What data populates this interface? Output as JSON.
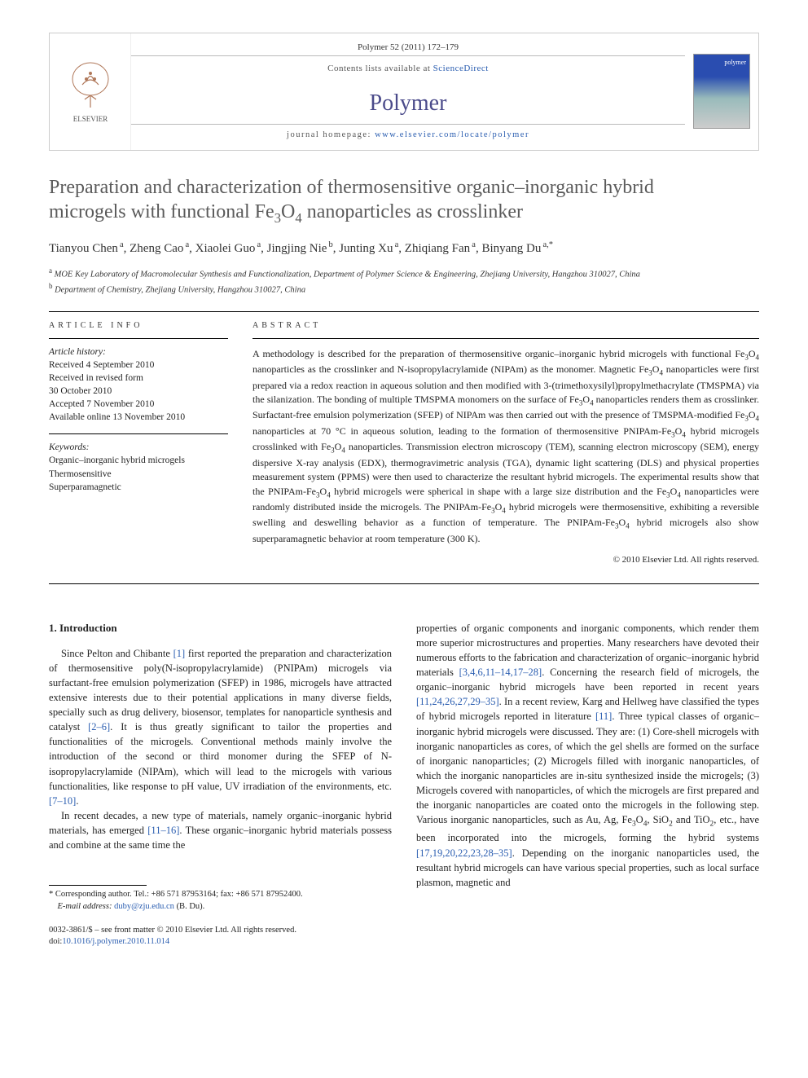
{
  "header": {
    "citation": "Polymer 52 (2011) 172–179",
    "contents_prefix": "Contents lists available at ",
    "contents_link": "ScienceDirect",
    "journal": "Polymer",
    "homepage_prefix": "journal homepage: ",
    "homepage_url": "www.elsevier.com/locate/polymer",
    "cover_label": "polymer",
    "publisher_name": "ELSEVIER"
  },
  "title_line1": "Preparation and characterization of thermosensitive organic–inorganic hybrid",
  "title_line2_pre": "microgels with functional Fe",
  "title_line2_sub1": "3",
  "title_line2_mid": "O",
  "title_line2_sub2": "4",
  "title_line2_post": " nanoparticles as crosslinker",
  "authors": [
    {
      "name": "Tianyou Chen",
      "aff": "a"
    },
    {
      "name": "Zheng Cao",
      "aff": "a"
    },
    {
      "name": "Xiaolei Guo",
      "aff": "a"
    },
    {
      "name": "Jingjing Nie",
      "aff": "b"
    },
    {
      "name": "Junting Xu",
      "aff": "a"
    },
    {
      "name": "Zhiqiang Fan",
      "aff": "a"
    },
    {
      "name": "Binyang Du",
      "aff": "a,*"
    }
  ],
  "affiliations": {
    "a": "MOE Key Laboratory of Macromolecular Synthesis and Functionalization, Department of Polymer Science & Engineering, Zhejiang University, Hangzhou 310027, China",
    "b": "Department of Chemistry, Zhejiang University, Hangzhou 310027, China"
  },
  "article_info": {
    "heading": "ARTICLE INFO",
    "history_label": "Article history:",
    "received": "Received 4 September 2010",
    "revised1": "Received in revised form",
    "revised2": "30 October 2010",
    "accepted": "Accepted 7 November 2010",
    "online": "Available online 13 November 2010",
    "keywords_label": "Keywords:",
    "keywords": [
      "Organic–inorganic hybrid microgels",
      "Thermosensitive",
      "Superparamagnetic"
    ]
  },
  "abstract": {
    "heading": "ABSTRACT",
    "text_parts": [
      "A methodology is described for the preparation of thermosensitive organic–inorganic hybrid microgels with functional Fe",
      "3",
      "O",
      "4",
      " nanoparticles as the crosslinker and N-isopropylacrylamide (NIPAm) as the monomer. Magnetic Fe",
      "3",
      "O",
      "4",
      " nanoparticles were first prepared via a redox reaction in aqueous solution and then modified with 3-(trimethoxysilyl)propylmethacrylate (TMSPMA) via the silanization. The bonding of multiple TMSPMA monomers on the surface of Fe",
      "3",
      "O",
      "4",
      " nanoparticles renders them as crosslinker. Surfactant-free emulsion polymerization (SFEP) of NIPAm was then carried out with the presence of TMSPMA-modified Fe",
      "3",
      "O",
      "4",
      " nanoparticles at 70 °C in aqueous solution, leading to the formation of thermosensitive PNIPAm-Fe",
      "3",
      "O",
      "4",
      " hybrid microgels crosslinked with Fe",
      "3",
      "O",
      "4",
      " nanoparticles. Transmission electron microscopy (TEM), scanning electron microscopy (SEM), energy dispersive X-ray analysis (EDX), thermogravimetric analysis (TGA), dynamic light scattering (DLS) and physical properties measurement system (PPMS) were then used to characterize the resultant hybrid microgels. The experimental results show that the PNIPAm-Fe",
      "3",
      "O",
      "4",
      " hybrid microgels were spherical in shape with a large size distribution and the Fe",
      "3",
      "O",
      "4",
      " nanoparticles were randomly distributed inside the microgels. The PNIPAm-Fe",
      "3",
      "O",
      "4",
      " hybrid microgels were thermosensitive, exhibiting a reversible swelling and deswelling behavior as a function of temperature. The PNIPAm-Fe",
      "3",
      "O",
      "4",
      " hybrid microgels also show superparamagnetic behavior at room temperature (300 K)."
    ],
    "copyright": "© 2010 Elsevier Ltd. All rights reserved."
  },
  "introduction": {
    "heading": "1. Introduction",
    "p1_a": "Since Pelton and Chibante ",
    "p1_ref1": "[1]",
    "p1_b": " first reported the preparation and characterization of thermosensitive poly(N-isopropylacrylamide) (PNIPAm) microgels via surfactant-free emulsion polymerization (SFEP) in 1986, microgels have attracted extensive interests due to their potential applications in many diverse fields, specially such as drug delivery, biosensor, templates for nanoparticle synthesis and catalyst ",
    "p1_ref2": "[2–6]",
    "p1_c": ". It is thus greatly significant to tailor the properties and functionalities of the microgels. Conventional methods mainly involve the introduction of the second or third monomer during the SFEP of N-isopropylacrylamide (NIPAm), which will lead to the microgels with various functionalities, like response to pH value, UV irradiation of the environments, etc. ",
    "p1_ref3": "[7–10]",
    "p1_d": ".",
    "p2_a": "In recent decades, a new type of materials, namely organic–inorganic hybrid materials, has emerged ",
    "p2_ref1": "[11–16]",
    "p2_b": ". These organic–inorganic hybrid materials possess and combine at the same time the",
    "p3_a": "properties of organic components and inorganic components, which render them more superior microstructures and properties. Many researchers have devoted their numerous efforts to the fabrication and characterization of organic–inorganic hybrid materials ",
    "p3_ref1": "[3,4,6,11–14,17–28]",
    "p3_b": ". Concerning the research field of microgels, the organic–inorganic hybrid microgels have been reported in recent years ",
    "p3_ref2": "[11,24,26,27,29–35]",
    "p3_c": ". In a recent review, Karg and Hellweg have classified the types of hybrid microgels reported in literature ",
    "p3_ref3": "[11]",
    "p3_d": ". Three typical classes of organic–inorganic hybrid microgels were discussed. They are: (1) Core-shell microgels with inorganic nanoparticles as cores, of which the gel shells are formed on the surface of inorganic nanoparticles; (2) Microgels filled with inorganic nanoparticles, of which the inorganic nanoparticles are in-situ synthesized inside the microgels; (3) Microgels covered with nanoparticles, of which the microgels are first prepared and the inorganic nanoparticles are coated onto the microgels in the following step. Various inorganic nanoparticles, such as Au, Ag, Fe",
    "p3_sub1": "3",
    "p3_mid1": "O",
    "p3_sub2": "4",
    "p3_e": ", SiO",
    "p3_sub3": "2",
    "p3_f": " and TiO",
    "p3_sub4": "2",
    "p3_g": ", etc., have been incorporated into the microgels, forming the hybrid systems ",
    "p3_ref4": "[17,19,20,22,23,28–35]",
    "p3_h": ". Depending on the inorganic nanoparticles used, the resultant hybrid microgels can have various special properties, such as local surface plasmon, magnetic and"
  },
  "footer": {
    "corr": "* Corresponding author. Tel.: +86 571 87953164; fax: +86 571 87952400.",
    "email_label": "E-mail address: ",
    "email": "duby@zju.edu.cn",
    "email_suffix": " (B. Du).",
    "issn": "0032-3861/$ – see front matter © 2010 Elsevier Ltd. All rights reserved.",
    "doi_label": "doi:",
    "doi": "10.1016/j.polymer.2010.11.014"
  },
  "colors": {
    "link": "#2a5db0",
    "journal_name": "#4a4a8a",
    "title_gray": "#5a5a5a",
    "text": "#222222",
    "border": "#cccccc"
  }
}
